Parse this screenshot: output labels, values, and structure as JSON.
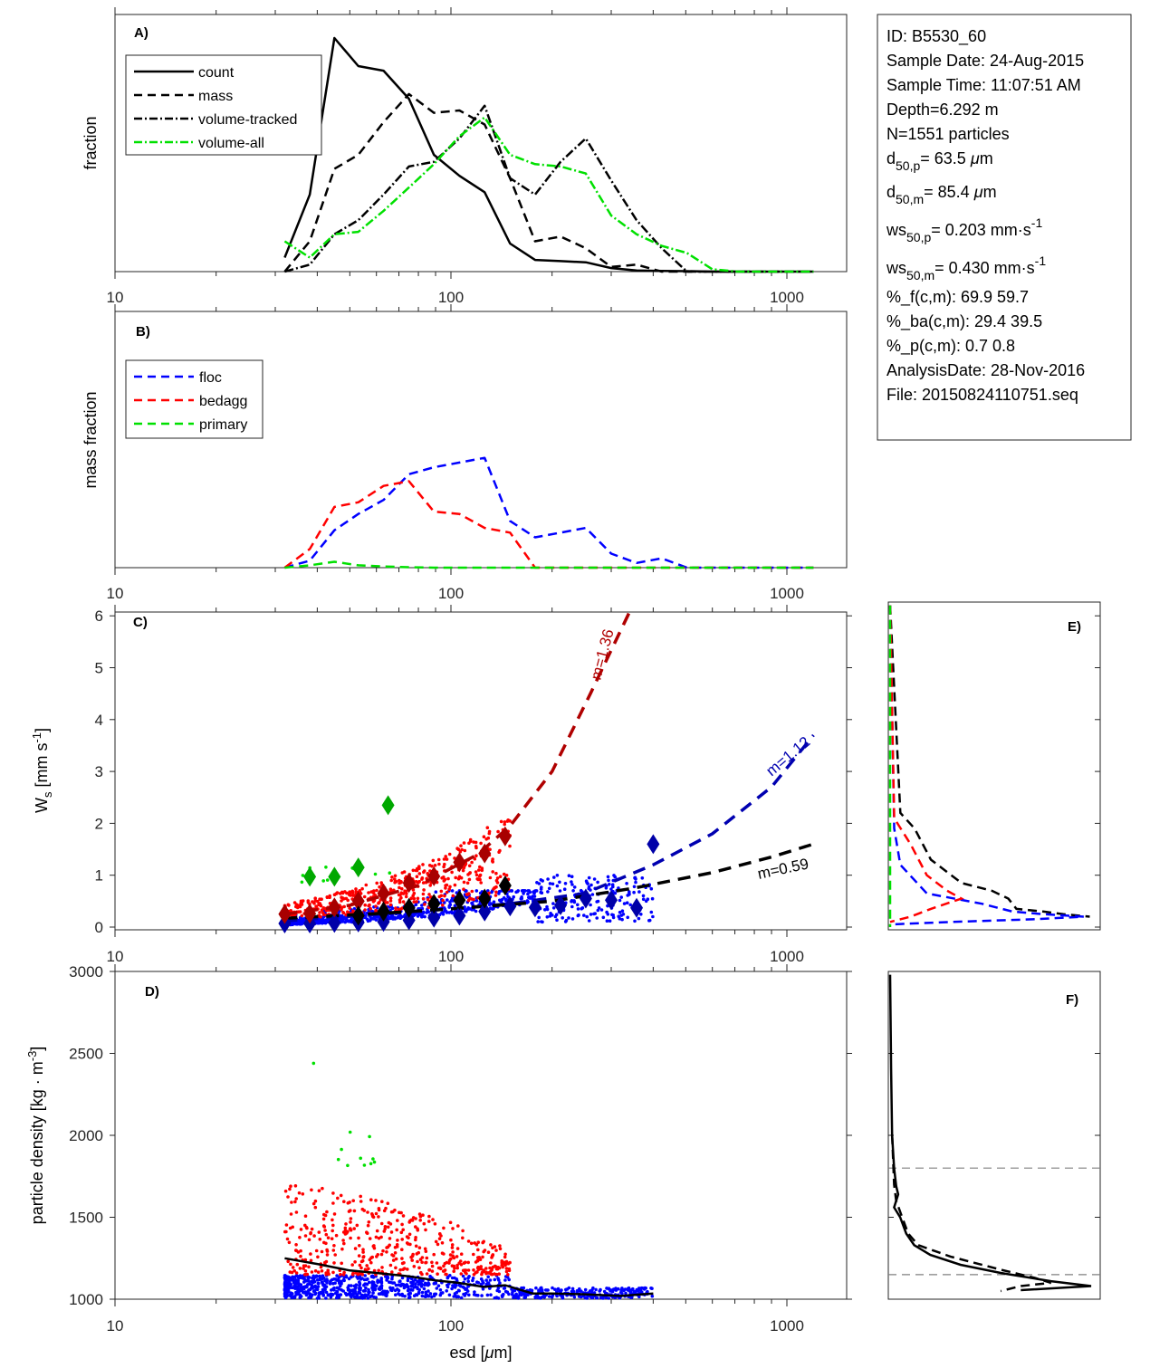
{
  "info_box": {
    "lines": [
      {
        "text": "ID: B5530_60"
      },
      {
        "text": "Sample Date: 24-Aug-2015"
      },
      {
        "text": "Sample Time: 11:07:51 AM"
      },
      {
        "text": "Depth=6.292 m"
      },
      {
        "text": "N=1551 particles"
      },
      {
        "base": "d",
        "sub": "50,p",
        "rest": "=  63.5 ",
        "mu": "μ",
        "unit": "m"
      },
      {
        "base": "d",
        "sub": "50,m",
        "rest": "=  85.4 ",
        "mu": "μ",
        "unit": "m"
      },
      {
        "base": "ws",
        "sub": "50,p",
        "rest": "= 0.203 mm·s",
        "sup": "-1"
      },
      {
        "base": "ws",
        "sub": "50,m",
        "rest": "= 0.430 mm·s",
        "sup": "-1"
      },
      {
        "text": "%_f(c,m): 69.9 59.7"
      },
      {
        "text": "%_ba(c,m): 29.4 39.5"
      },
      {
        "text": "%_p(c,m): 0.7 0.8"
      },
      {
        "text": "AnalysisDate: 28-Nov-2016"
      },
      {
        "text": "File: 20150824110751.seq"
      }
    ]
  },
  "chart_data": [
    {
      "panel": "A",
      "label": "A)",
      "type": "line",
      "xscale": "log",
      "xlim": [
        10,
        1500
      ],
      "xticks": [
        10,
        100,
        1000
      ],
      "xticklabels": [
        "10",
        "100",
        "1000"
      ],
      "ylabel": "fraction",
      "ylim": [
        0,
        1.1
      ],
      "yticks": [],
      "legend": "top-left",
      "x": [
        32,
        38,
        45,
        53,
        63,
        75,
        89,
        106,
        126,
        150,
        178,
        212,
        252,
        300,
        357,
        424,
        504,
        600,
        713,
        848,
        1008,
        1200
      ],
      "series": [
        {
          "name": "count",
          "style": "solid",
          "color": "#000000",
          "values": [
            0.06,
            0.33,
            1.0,
            0.88,
            0.86,
            0.74,
            0.5,
            0.41,
            0.34,
            0.12,
            0.05,
            0.045,
            0.04,
            0.015,
            0.005,
            0.003,
            0.002,
            0.0,
            0.0,
            0.0,
            0.0,
            0.0
          ]
        },
        {
          "name": "mass",
          "style": "dashed",
          "color": "#000000",
          "values": [
            0.0,
            0.13,
            0.44,
            0.5,
            0.64,
            0.76,
            0.68,
            0.69,
            0.63,
            0.4,
            0.13,
            0.15,
            0.1,
            0.02,
            0.03,
            0.0,
            0.0,
            0.0,
            0.0,
            0.0,
            0.0,
            0.0
          ]
        },
        {
          "name": "volume-tracked",
          "style": "dashdot",
          "color": "#000000",
          "values": [
            0.0,
            0.03,
            0.16,
            0.22,
            0.33,
            0.45,
            0.47,
            0.57,
            0.71,
            0.4,
            0.33,
            0.47,
            0.57,
            0.39,
            0.22,
            0.1,
            0.0,
            0.0,
            0.0,
            0.0,
            0.0,
            0.0
          ]
        },
        {
          "name": "volume-all",
          "style": "dashdot",
          "color": "#00e000",
          "values": [
            0.13,
            0.06,
            0.16,
            0.17,
            0.26,
            0.36,
            0.46,
            0.58,
            0.66,
            0.5,
            0.46,
            0.45,
            0.42,
            0.24,
            0.16,
            0.11,
            0.08,
            0.01,
            0.0,
            0.0,
            0.0,
            0.0
          ]
        }
      ]
    },
    {
      "panel": "B",
      "label": "B)",
      "type": "line",
      "xscale": "log",
      "xlim": [
        10,
        1500
      ],
      "xticks": [
        10,
        100,
        1000
      ],
      "xticklabels": [
        "10",
        "100",
        "1000"
      ],
      "ylabel": "mass fraction",
      "ylim": [
        0,
        1.1
      ],
      "yticks": [],
      "legend": "top-left",
      "x": [
        32,
        38,
        45,
        53,
        63,
        75,
        89,
        106,
        126,
        150,
        178,
        212,
        252,
        300,
        357,
        424,
        504,
        600,
        713,
        848,
        1008,
        1200
      ],
      "series": [
        {
          "name": "floc",
          "style": "dashed",
          "color": "#0000ff",
          "values": [
            0.0,
            0.03,
            0.16,
            0.23,
            0.29,
            0.4,
            0.43,
            0.45,
            0.47,
            0.2,
            0.13,
            0.15,
            0.17,
            0.06,
            0.02,
            0.04,
            0.0,
            0.0,
            0.0,
            0.0,
            0.0,
            0.0
          ]
        },
        {
          "name": "bedagg",
          "style": "dashed",
          "color": "#ff0000",
          "values": [
            0.0,
            0.08,
            0.26,
            0.28,
            0.35,
            0.37,
            0.24,
            0.23,
            0.17,
            0.15,
            0.0,
            0.0,
            0.0,
            0.0,
            0.0,
            0.0,
            0.0,
            0.0,
            0.0,
            0.0,
            0.0,
            0.0
          ]
        },
        {
          "name": "primary",
          "style": "dashed",
          "color": "#00e000",
          "values": [
            0.0,
            0.01,
            0.025,
            0.01,
            0.005,
            0.002,
            0.0,
            0.0,
            0.0,
            0.0,
            0.0,
            0.0,
            0.0,
            0.0,
            0.0,
            0.0,
            0.0,
            0.0,
            0.0,
            0.0,
            0.0,
            0.0
          ]
        }
      ]
    },
    {
      "panel": "C",
      "label": "C)",
      "type": "scatter",
      "xscale": "log",
      "xlim": [
        10,
        1500
      ],
      "xticks": [
        10,
        100,
        1000
      ],
      "xticklabels": [
        "10",
        "100",
        "1000"
      ],
      "ylabel_base": "W",
      "ylabel_sub": "s",
      "ylabel_rest": " [mm s",
      "ylabel_sup": "-1",
      "ylabel_end": "]",
      "ylim": [
        -0.06,
        6.25
      ],
      "yticks": [
        0,
        1,
        2,
        3,
        4,
        5,
        6
      ],
      "yticklabels": [
        "0",
        "1",
        "2",
        "3",
        "4",
        "5",
        "6"
      ],
      "scatter_groups": [
        {
          "name": "floc",
          "color": "#0000ff",
          "count": 900,
          "xrange": [
            32,
            400
          ],
          "yrange": [
            0.0,
            0.6
          ]
        },
        {
          "name": "bedagg",
          "color": "#ff0000",
          "count": 470,
          "xrange": [
            32,
            150
          ],
          "yrange": [
            0.1,
            2.0
          ]
        },
        {
          "name": "primary",
          "color": "#00e000",
          "count": 12,
          "xrange": [
            36,
            66
          ],
          "yrange": [
            0.8,
            1.25
          ]
        }
      ],
      "binned_means": [
        {
          "name": "floc",
          "color": "#0000a8",
          "x": [
            32,
            38,
            45,
            53,
            63,
            75,
            89,
            106,
            126,
            150,
            178,
            212,
            252,
            300,
            357,
            400
          ],
          "y": [
            0.07,
            0.07,
            0.08,
            0.09,
            0.1,
            0.13,
            0.18,
            0.22,
            0.3,
            0.4,
            0.38,
            0.42,
            0.55,
            0.52,
            0.37,
            1.6
          ]
        },
        {
          "name": "bedagg",
          "color": "#a80000",
          "x": [
            32,
            38,
            45,
            53,
            63,
            75,
            89,
            106,
            126,
            145
          ],
          "y": [
            0.25,
            0.26,
            0.38,
            0.5,
            0.65,
            0.85,
            0.98,
            1.25,
            1.42,
            1.75
          ]
        },
        {
          "name": "primary",
          "color": "#00a800",
          "x": [
            38,
            45,
            53,
            65
          ],
          "y": [
            0.97,
            0.97,
            1.15,
            2.35
          ]
        },
        {
          "name": "all",
          "color": "#000000",
          "x": [
            53,
            63,
            75,
            89,
            106,
            126,
            145
          ],
          "y": [
            0.22,
            0.3,
            0.37,
            0.45,
            0.52,
            0.55,
            0.8
          ]
        }
      ],
      "fits": [
        {
          "name": "bedagg fit",
          "label": "m=1.36",
          "color": "#b00000",
          "x": [
            32,
            50,
            80,
            120,
            150,
            200,
            260,
            340
          ],
          "y": [
            0.25,
            0.42,
            0.8,
            1.4,
            1.95,
            3.0,
            4.5,
            6.25
          ]
        },
        {
          "name": "floc fit",
          "label": "m=1.12",
          "color": "#0000b0",
          "x": [
            32,
            80,
            150,
            250,
            400,
            600,
            900,
            1200
          ],
          "y": [
            0.12,
            0.3,
            0.45,
            0.65,
            1.2,
            1.8,
            2.7,
            3.7
          ]
        },
        {
          "name": "all fit",
          "label": "m=0.59",
          "color": "#000000",
          "x": [
            32,
            60,
            100,
            200,
            350,
            600,
            900,
            1200
          ],
          "y": [
            0.17,
            0.26,
            0.35,
            0.5,
            0.75,
            1.05,
            1.35,
            1.6
          ]
        }
      ]
    },
    {
      "panel": "D",
      "label": "D)",
      "type": "scatter",
      "xscale": "log",
      "xlim": [
        10,
        1500
      ],
      "xticks": [
        10,
        100,
        1000
      ],
      "xticklabels": [
        "10",
        "100",
        "1000"
      ],
      "xlabel": "esd [",
      "xlabel_mu": "μ",
      "xlabel_end": "m]",
      "ylabel_main": "particle density [kg · m",
      "ylabel_sup": "-3",
      "ylabel_end": "]",
      "ylim": [
        1000,
        3000
      ],
      "yticks": [
        1000,
        1500,
        2000,
        2500,
        3000
      ],
      "yticklabels": [
        "1000",
        "1500",
        "2000",
        "2500",
        "3000"
      ],
      "scatter_groups": [
        {
          "name": "floc",
          "color": "#0000ff",
          "count": 900,
          "xrange": [
            32,
            400
          ],
          "yrange": [
            1005,
            1145
          ]
        },
        {
          "name": "bedagg",
          "color": "#ff0000",
          "count": 470,
          "xrange": [
            32,
            150
          ],
          "yrange": [
            1150,
            1700
          ]
        },
        {
          "name": "primary",
          "color": "#00e000",
          "count": 11,
          "xrange": [
            37,
            66
          ],
          "yrange": [
            1800,
            2440
          ]
        }
      ],
      "median_line": {
        "color": "#000000",
        "x": [
          32,
          40,
          50,
          60,
          75,
          90,
          105,
          125,
          145,
          175,
          200,
          250,
          320,
          400
        ],
        "y": [
          1250,
          1215,
          1175,
          1160,
          1140,
          1115,
          1100,
          1075,
          1085,
          1035,
          1035,
          1030,
          1020,
          1035
        ]
      }
    },
    {
      "panel": "E",
      "label": "E)",
      "type": "line",
      "orientation": "horizontal-distribution",
      "ylim": [
        -0.06,
        6.25
      ],
      "yticks": [
        0,
        1,
        2,
        3,
        4,
        5,
        6
      ],
      "series": [
        {
          "name": "all",
          "style": "dashed",
          "color": "#000000",
          "y": [
            6.2,
            2.2,
            1.9,
            1.3,
            0.85,
            0.7,
            0.55,
            0.35,
            0.3,
            0.25,
            0.2
          ],
          "values": [
            0.0,
            0.05,
            0.12,
            0.2,
            0.35,
            0.5,
            0.58,
            0.62,
            0.75,
            0.85,
            0.98
          ]
        },
        {
          "name": "floc",
          "style": "dashed",
          "color": "#0000ff",
          "y": [
            6.2,
            1.9,
            1.2,
            0.65,
            0.45,
            0.3,
            0.25,
            0.2,
            0.15,
            0.1,
            0.06,
            0.05
          ],
          "values": [
            0.0,
            0.02,
            0.05,
            0.18,
            0.45,
            0.6,
            0.75,
            0.95,
            0.7,
            0.3,
            0.05,
            0.0
          ]
        },
        {
          "name": "bedagg",
          "style": "dashed",
          "color": "#ff0000",
          "y": [
            6.2,
            2.1,
            1.6,
            1.0,
            0.7,
            0.55,
            0.35,
            0.2,
            0.1
          ],
          "values": [
            0.0,
            0.02,
            0.1,
            0.18,
            0.28,
            0.35,
            0.2,
            0.1,
            0.0
          ]
        },
        {
          "name": "primary",
          "style": "dashed",
          "color": "#00e000",
          "y": [
            6.2,
            0.0
          ],
          "values": [
            0.0,
            0.0
          ]
        }
      ]
    },
    {
      "panel": "F",
      "label": "F)",
      "type": "line",
      "orientation": "horizontal-distribution",
      "ylim": [
        1000,
        3000
      ],
      "yticks": [
        1000,
        1500,
        2000,
        2500,
        3000
      ],
      "reference_lines": [
        {
          "y": 1800,
          "color": "#808080",
          "style": "dashed"
        },
        {
          "y": 1150,
          "color": "#808080",
          "style": "dashed"
        }
      ],
      "series": [
        {
          "name": "count",
          "style": "solid",
          "color": "#000000",
          "y": [
            2980,
            2400,
            2000,
            1800,
            1690,
            1640,
            1560,
            1500,
            1400,
            1330,
            1270,
            1210,
            1160,
            1110,
            1080,
            1055
          ],
          "values": [
            0.0,
            0.005,
            0.01,
            0.02,
            0.03,
            0.04,
            0.02,
            0.05,
            0.08,
            0.12,
            0.2,
            0.35,
            0.55,
            0.8,
            1.0,
            0.65
          ]
        },
        {
          "name": "mass",
          "style": "dashed",
          "color": "#000000",
          "y": [
            2000,
            1700,
            1600,
            1500,
            1400,
            1330,
            1260,
            1180,
            1130,
            1100,
            1080,
            1050
          ],
          "values": [
            0.01,
            0.02,
            0.03,
            0.06,
            0.09,
            0.14,
            0.3,
            0.55,
            0.72,
            0.8,
            0.65,
            0.55
          ]
        }
      ]
    }
  ]
}
